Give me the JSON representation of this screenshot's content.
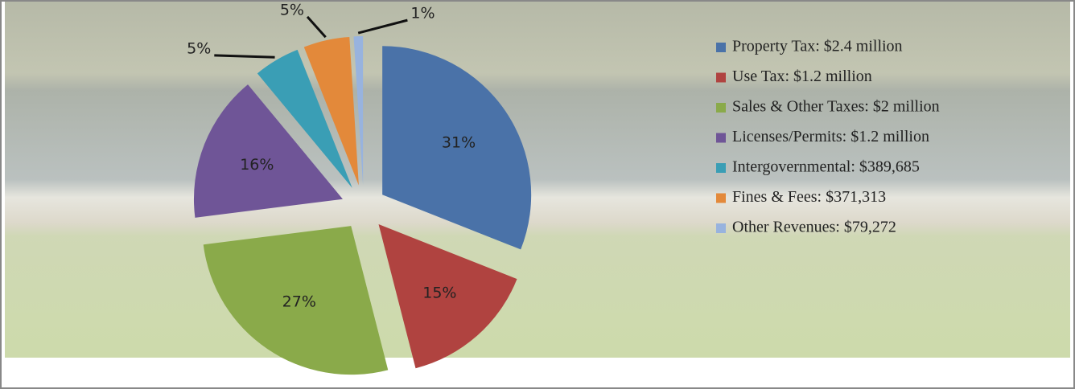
{
  "chart_data": {
    "type": "pie",
    "categories": [
      "Property Tax: $2.4 million",
      "Use Tax: $1.2 million",
      "Sales & Other Taxes: $2 million",
      "Licenses/Permits: $1.2 million",
      "Intergovernmental: $389,685",
      "Fines & Fees: $371,313",
      "Other Revenues: $79,272"
    ],
    "values": [
      31,
      15,
      27,
      16,
      5,
      5,
      1
    ],
    "value_labels": [
      "31%",
      "15%",
      "27%",
      "16%",
      "5%",
      "5%",
      "1%"
    ],
    "colors": [
      "#4a72a8",
      "#b04340",
      "#8aaa4a",
      "#6f5597",
      "#3a9eb5",
      "#e3893a",
      "#98b3de"
    ],
    "legend": "right"
  }
}
